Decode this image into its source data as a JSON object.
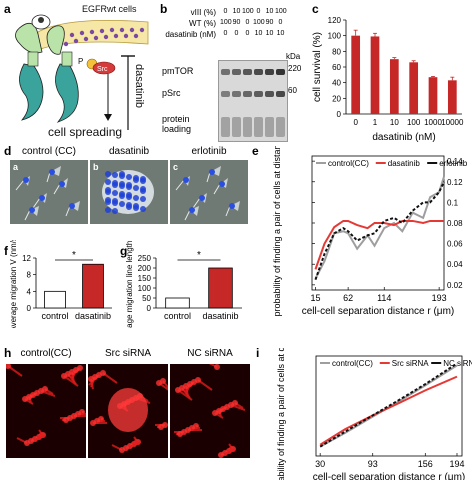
{
  "panels": {
    "a": {
      "letter": "a",
      "cell_label": "EGFRwt cells",
      "p_label": "P",
      "src_label": "Src",
      "drug_label": "dasatinib",
      "outcome_label": "cell spreading"
    },
    "b": {
      "letter": "b",
      "rows": [
        {
          "label": "vIII (%)",
          "values": [
            "0",
            "10",
            "100",
            "0",
            "10",
            "100"
          ]
        },
        {
          "label": "WT (%)",
          "values": [
            "100",
            "90",
            "0",
            "100",
            "90",
            "0"
          ]
        },
        {
          "label": "dasatinib (nM)",
          "values": [
            "0",
            "0",
            "0",
            "10",
            "10",
            "10"
          ]
        }
      ],
      "kda_label": "kDa",
      "bands": [
        {
          "name": "pmTOR",
          "kda": "220"
        },
        {
          "name": "pSrc",
          "kda": "60"
        },
        {
          "name": "protein loading",
          "kda": ""
        }
      ]
    },
    "d": {
      "letter": "d",
      "titles": [
        "control (CC)",
        "dasatinib",
        "erlotinib"
      ],
      "sublabels": [
        "a",
        "b",
        "c"
      ]
    },
    "h": {
      "letter": "h",
      "titles": [
        "control(CC)",
        "Src siRNA",
        "NC siRNA"
      ]
    }
  },
  "chart_data": [
    {
      "id": "c",
      "letter": "c",
      "type": "bar",
      "categories": [
        "0",
        "1",
        "10",
        "100",
        "1000",
        "10000"
      ],
      "values": [
        100,
        99,
        70,
        66,
        47,
        43
      ],
      "errors": [
        7,
        4,
        2,
        2,
        1,
        4
      ],
      "ylabel": "cell survival (%)",
      "xlabel": "dasatinib (nM)",
      "ylim": [
        0,
        120
      ],
      "yticks": [
        "0",
        "20",
        "40",
        "60",
        "80",
        "100",
        "120"
      ],
      "color": "#c62828"
    },
    {
      "id": "e",
      "letter": "e",
      "type": "line",
      "series": [
        {
          "name": "control(CC)",
          "color": "#9e9e9e",
          "x": [
            15,
            28,
            42,
            55,
            62,
            75,
            90,
            100,
            114,
            128,
            140,
            155,
            170,
            180,
            193,
            200
          ],
          "y": [
            0.026,
            0.043,
            0.07,
            0.072,
            0.07,
            0.055,
            0.068,
            0.058,
            0.075,
            0.08,
            0.072,
            0.09,
            0.085,
            0.105,
            0.11,
            0.125
          ]
        },
        {
          "name": "dasatinib",
          "color": "#e53935",
          "x": [
            15,
            28,
            42,
            55,
            62,
            75,
            90,
            100,
            114,
            128,
            140,
            155,
            170,
            180,
            193,
            200
          ],
          "y": [
            0.035,
            0.06,
            0.076,
            0.082,
            0.082,
            0.078,
            0.075,
            0.08,
            0.08,
            0.078,
            0.082,
            0.082,
            0.08,
            0.082,
            0.082,
            0.082
          ]
        },
        {
          "name": "erlotinib",
          "color": "#111111",
          "x": [
            15,
            28,
            42,
            55,
            62,
            75,
            90,
            100,
            114,
            128,
            140,
            155,
            170,
            180,
            193,
            200
          ],
          "y": [
            0.025,
            0.05,
            0.07,
            0.075,
            0.072,
            0.063,
            0.068,
            0.07,
            0.082,
            0.085,
            0.08,
            0.092,
            0.1,
            0.1,
            0.11,
            0.12
          ]
        }
      ],
      "ylabel": "probability of finding a pair of cells at distance r",
      "xlabel": "cell-cell separation distance r (μm)",
      "xlim": [
        10,
        200
      ],
      "ylim": [
        0.015,
        0.145
      ],
      "xticks": [
        "15",
        "62",
        "114",
        "193"
      ],
      "xtick_values": [
        15,
        62,
        114,
        193
      ],
      "yticks": [
        "0.14",
        "0.12",
        "0.1",
        "0.08",
        "0.06",
        "0.04",
        "0.02"
      ],
      "ytick_values": [
        0.14,
        0.12,
        0.1,
        0.08,
        0.06,
        0.04,
        0.02
      ]
    },
    {
      "id": "f",
      "letter": "f",
      "type": "bar",
      "categories": [
        "control",
        "dasatinib"
      ],
      "values": [
        4,
        10.5
      ],
      "colors": [
        "#ffffff",
        "#c62828"
      ],
      "ylabel": "Average migration V (nm/s)",
      "ylim": [
        0,
        12
      ],
      "yticks": [
        "0",
        "4",
        "8",
        "12"
      ],
      "ytick_values": [
        0,
        4,
        8,
        12
      ],
      "significance": "*"
    },
    {
      "id": "g",
      "letter": "g",
      "type": "bar",
      "categories": [
        "control",
        "dasatinib"
      ],
      "values": [
        50,
        200
      ],
      "colors": [
        "#ffffff",
        "#c62828"
      ],
      "ylabel": "Average migration line length (μm)",
      "ylim": [
        0,
        250
      ],
      "yticks": [
        "0",
        "50",
        "100",
        "150",
        "200",
        "250"
      ],
      "ytick_values": [
        0,
        50,
        100,
        150,
        200,
        250
      ],
      "significance": "*"
    },
    {
      "id": "i",
      "letter": "i",
      "type": "line",
      "series": [
        {
          "name": "control(CC)",
          "color": "#9e9e9e",
          "x": [
            30,
            60,
            93,
            125,
            156,
            194
          ],
          "y": [
            0.03,
            0.052,
            0.078,
            0.103,
            0.128,
            0.16
          ]
        },
        {
          "name": "Src siRNA",
          "color": "#e53935",
          "x": [
            30,
            60,
            93,
            125,
            156,
            194
          ],
          "y": [
            0.033,
            0.058,
            0.08,
            0.1,
            0.12,
            0.142
          ]
        },
        {
          "name": "NC siRNA",
          "color": "#111111",
          "x": [
            30,
            60,
            93,
            125,
            156,
            194
          ],
          "y": [
            0.03,
            0.054,
            0.08,
            0.105,
            0.13,
            0.163
          ]
        }
      ],
      "ylabel": "probability of finding a pair of cells at distance r",
      "xlabel": "cell-cell separation distance r (μm)",
      "xlim": [
        25,
        200
      ],
      "ylim": [
        0.015,
        0.175
      ],
      "xticks": [
        "30",
        "93",
        "156",
        "194"
      ],
      "xtick_values": [
        30,
        93,
        156,
        194
      ]
    }
  ]
}
